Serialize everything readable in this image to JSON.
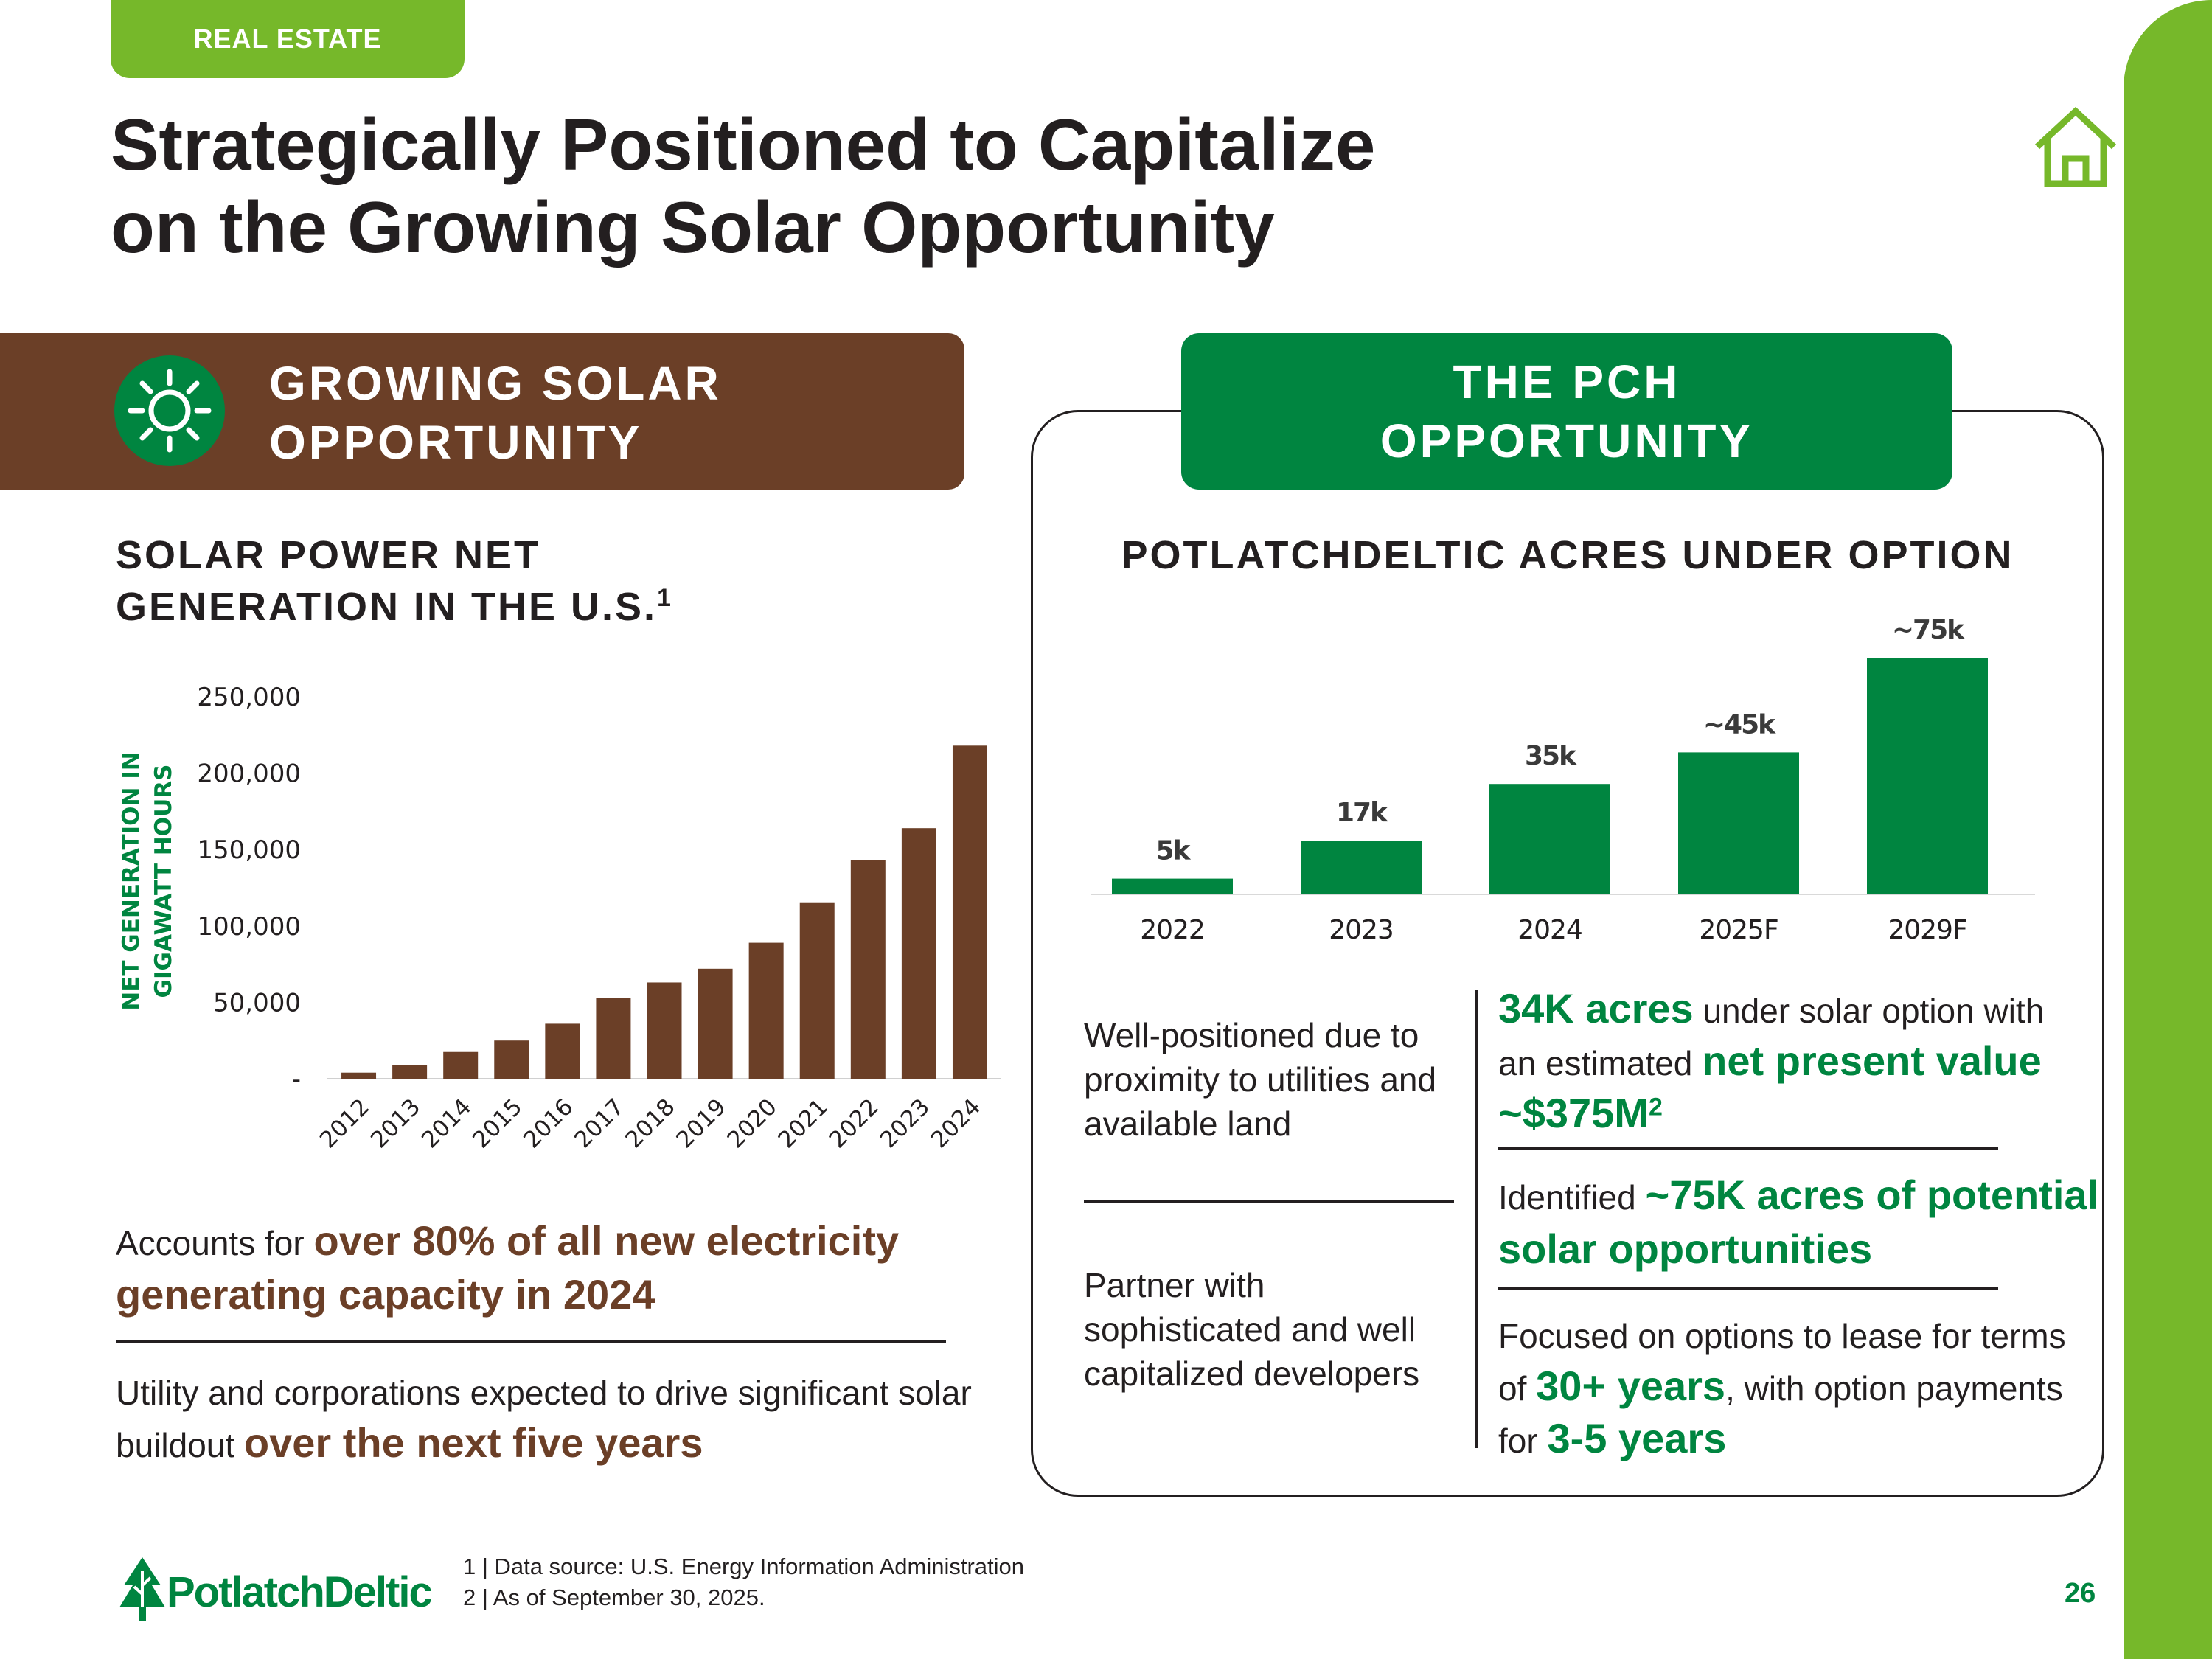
{
  "header": {
    "tag": "REAL ESTATE",
    "title_line1": "Strategically Positioned to Capitalize",
    "title_line2": "on the Growing Solar Opportunity"
  },
  "left_section": {
    "banner_line1": "GROWING SOLAR",
    "banner_line2": "OPPORTUNITY",
    "chart_title_line1": "SOLAR POWER NET",
    "chart_title_line2": "GENERATION IN THE U.S.",
    "chart_title_sup": "1",
    "point1_prefix": "Accounts for ",
    "point1_highlight": "over 80% of all new electricity generating capacity in 2024",
    "point2_prefix": "Utility and corporations expected to drive significant solar buildout ",
    "point2_highlight": "over the next five years"
  },
  "right_section": {
    "banner_line1": "THE PCH",
    "banner_line2": "OPPORTUNITY",
    "chart_title": "POTLATCHDELTIC ACRES UNDER OPTION",
    "left_text1": "Well-positioned due to proximity to utilities and available land",
    "left_text2": "Partner with sophisticated and well capitalized developers",
    "point1_hl_a": "34K acres",
    "point1_text_a": " under solar option with an estimated ",
    "point1_hl_b": "net present value ~$375M",
    "point1_sup": "2",
    "point2_text": "Identified ",
    "point2_hl": "~75K acres of potential solar opportunities",
    "point3_text_a": "Focused on options to lease for terms of ",
    "point3_hl_a": "30+ years",
    "point3_text_b": ", with option payments for ",
    "point3_hl_b": "3-5 years"
  },
  "footer": {
    "logo_text": "PotlatchDeltic",
    "footnote1": "1 | Data source: U.S. Energy Information Administration",
    "footnote2": "2 | As of September 30, 2025.",
    "page_number": "26"
  },
  "colors": {
    "brown": "#6b3f27",
    "green": "#008540",
    "lime": "#76b82a"
  },
  "chart_data": [
    {
      "type": "bar",
      "title": "SOLAR POWER NET GENERATION IN THE U.S.",
      "ylabel": "NET GENERATION IN GIGAWATT HOURS",
      "xlabel": "",
      "categories": [
        "2012",
        "2013",
        "2014",
        "2015",
        "2016",
        "2017",
        "2018",
        "2019",
        "2020",
        "2021",
        "2022",
        "2023",
        "2024"
      ],
      "values": [
        4000,
        9000,
        17500,
        25000,
        36000,
        53000,
        63000,
        72000,
        89000,
        115000,
        143000,
        164000,
        218000
      ],
      "yticks": [
        0,
        50000,
        100000,
        150000,
        200000,
        250000
      ],
      "ytick_labels": [
        "-",
        "50,000",
        "100,000",
        "150,000",
        "200,000",
        "250,000"
      ],
      "ylim": [
        0,
        250000
      ],
      "grid": false,
      "color": "#6b3f27"
    },
    {
      "type": "bar",
      "title": "POTLATCHDELTIC ACRES UNDER OPTION",
      "xlabel": "",
      "ylabel": "",
      "categories": [
        "2022",
        "2023",
        "2024",
        "2025F",
        "2029F"
      ],
      "values": [
        5,
        17,
        35,
        45,
        75
      ],
      "data_labels": [
        "5k",
        "17k",
        "35k",
        "~45k",
        "~75k"
      ],
      "ylim": [
        0,
        75
      ],
      "grid": false,
      "color": "#008540"
    }
  ]
}
